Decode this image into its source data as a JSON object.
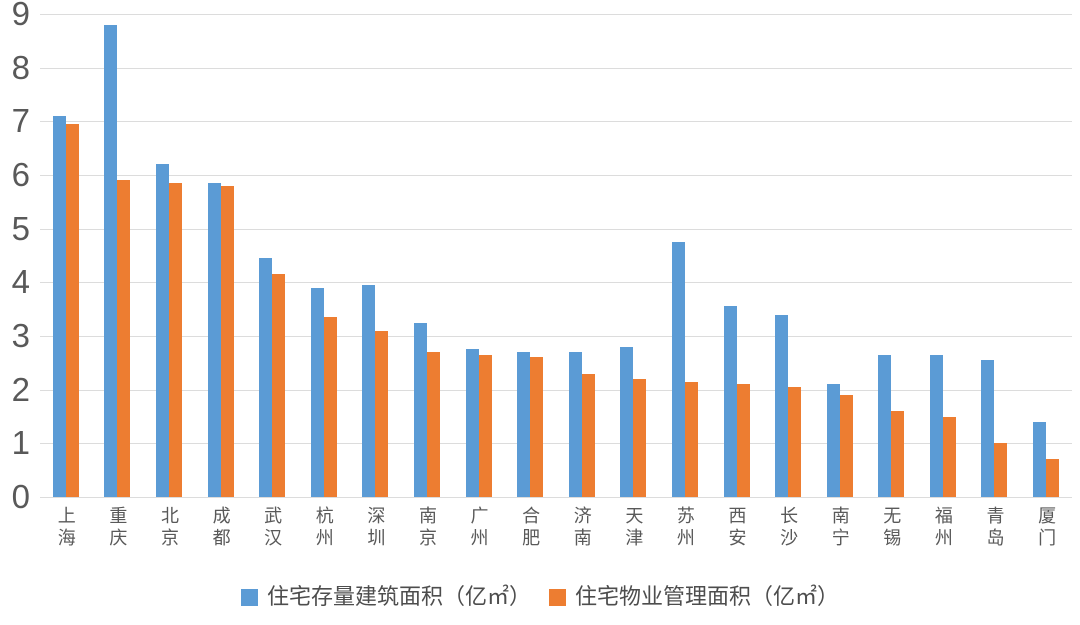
{
  "chart_data": {
    "type": "bar",
    "title": "",
    "categories": [
      "上海",
      "重庆",
      "北京",
      "成都",
      "武汉",
      "杭州",
      "深圳",
      "南京",
      "广州",
      "合肥",
      "济南",
      "天津",
      "苏州",
      "西安",
      "长沙",
      "南宁",
      "无锡",
      "福州",
      "青岛",
      "厦门"
    ],
    "series": [
      {
        "name": "住宅存量建筑面积（亿㎡）",
        "color": "#5B9BD5",
        "values": [
          7.1,
          8.8,
          6.2,
          5.85,
          4.45,
          3.9,
          3.95,
          3.25,
          2.75,
          2.7,
          2.7,
          2.8,
          4.75,
          3.55,
          3.4,
          2.1,
          2.65,
          2.65,
          2.55,
          1.4
        ]
      },
      {
        "name": "住宅物业管理面积（亿㎡）",
        "color": "#ED7D31",
        "values": [
          6.95,
          5.9,
          5.85,
          5.8,
          4.15,
          3.35,
          3.1,
          2.7,
          2.65,
          2.6,
          2.3,
          2.2,
          2.15,
          2.1,
          2.05,
          1.9,
          1.6,
          1.5,
          1.0,
          0.7
        ]
      }
    ],
    "xlabel": "",
    "ylabel": "",
    "ylim": [
      0,
      9
    ],
    "yticks": [
      0,
      1,
      2,
      3,
      4,
      5,
      6,
      7,
      8,
      9
    ],
    "grid": true,
    "legend_position": "bottom"
  },
  "style": {
    "gridline_color": "#dcdcdc",
    "tick_label_color": "#595959",
    "legend_text_color": "#4d4d4d",
    "background": "#ffffff"
  }
}
